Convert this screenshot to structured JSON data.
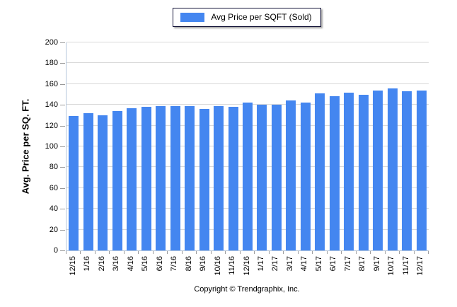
{
  "legend": {
    "label": "Avg Price per SQFT (Sold)"
  },
  "chart_data": {
    "type": "bar",
    "title": "",
    "xlabel": "",
    "ylabel": "Avg. Price per SQ. FT.",
    "categories": [
      "12/15",
      "1/16",
      "2/16",
      "3/16",
      "4/16",
      "5/16",
      "6/16",
      "7/16",
      "8/16",
      "9/16",
      "10/16",
      "11/16",
      "12/16",
      "1/17",
      "2/17",
      "3/17",
      "4/17",
      "5/17",
      "6/17",
      "7/17",
      "8/17",
      "9/17",
      "10/17",
      "11/17",
      "12/17"
    ],
    "series": [
      {
        "name": "Avg Price per SQFT (Sold)",
        "values": [
          129,
          132,
          130,
          134,
          137,
          138,
          139,
          139,
          139,
          136,
          139,
          138,
          142,
          140,
          140,
          144,
          142,
          151,
          148,
          152,
          150,
          154,
          156,
          153,
          154
        ]
      }
    ],
    "ylim": [
      0,
      200
    ],
    "yticks": [
      0,
      20,
      40,
      60,
      80,
      100,
      120,
      140,
      160,
      180,
      200
    ],
    "grid": true,
    "legend_position": "top-center",
    "bar_color": "#4486F0"
  },
  "colors": {
    "bar": "#4486F0",
    "gridline": "#d9d9d9",
    "axis_line": "#b4c6dc",
    "tick": "#9a9a9a",
    "legend_border": "#16163a",
    "text": "#000000"
  },
  "footer": {
    "copyright": "Copyright © Trendgraphix, Inc."
  }
}
